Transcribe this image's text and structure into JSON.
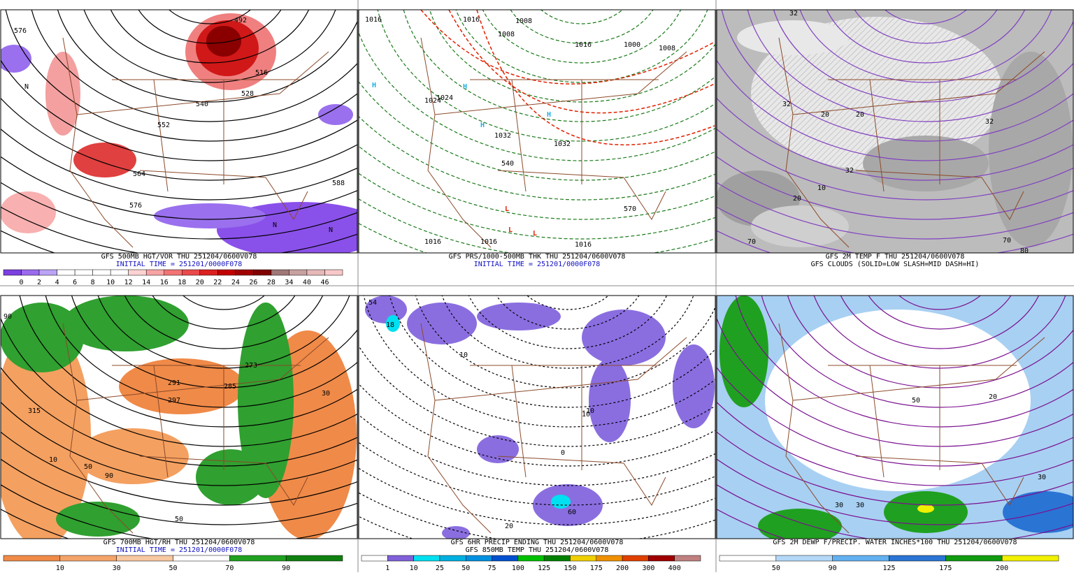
{
  "panels": [
    {
      "captions": [
        "GFS 500MB HGT/VOR THU 251204/0600V078",
        "INITIAL TIME = 251201/0000F078"
      ],
      "colorbar": {
        "colors": [
          "#7c3fe0",
          "#9a6aee",
          "#bba3f5",
          "#ffffff",
          "#ffffff",
          "#ffffff",
          "#ffffff",
          "#fcd2d2",
          "#f8a4a4",
          "#f27474",
          "#ea4a4a",
          "#dc2020",
          "#c20000",
          "#a00000",
          "#800000",
          "#a07878",
          "#c8a0a0",
          "#e6b8b8",
          "#f8c8c8"
        ],
        "labels": [
          "0",
          "2",
          "4",
          "6",
          "8",
          "10",
          "12",
          "14",
          "16",
          "18",
          "20",
          "22",
          "24",
          "26",
          "28",
          "34",
          "40",
          "46"
        ]
      },
      "map_labels": [
        "576",
        "492",
        "516",
        "528",
        "540",
        "552",
        "564",
        "576",
        "588",
        "N",
        "N",
        "N"
      ]
    },
    {
      "captions": [
        "GFS PRS/1000-500MB THK THU 251204/0600V078",
        "INITIAL TIME = 251201/0000F078"
      ],
      "map_labels": [
        "1016",
        "1016",
        "1008",
        "1008",
        "1016",
        "1000",
        "1008",
        "1024",
        "1024",
        "1032",
        "1032",
        "540",
        "570",
        "1016",
        "1016",
        "1016",
        "L",
        "L",
        "L",
        "H",
        "H",
        "H",
        "H"
      ]
    },
    {
      "captions": [
        "GFS 2M TEMP F THU 251204/0600V078",
        "GFS CLOUDS (SOLID=LOW SLASH=MID DASH=HI)"
      ],
      "map_labels": [
        "32",
        "20",
        "20",
        "32",
        "32",
        "32",
        "20",
        "10",
        "70",
        "80",
        "70"
      ]
    },
    {
      "captions": [
        "GFS 700MB HGT/RH THU 251204/0600V078",
        "INITIAL TIME = 251201/0000F078"
      ],
      "colorbar": {
        "colors": [
          "#f08a48",
          "#f4a468",
          "#f8c8a0",
          "#ffffff",
          "#20a020",
          "#108010"
        ],
        "labels": [
          "10",
          "30",
          "50",
          "70",
          "90"
        ]
      },
      "map_labels": [
        "90",
        "297",
        "291",
        "285",
        "273",
        "315",
        "10",
        "50",
        "90",
        "30",
        "50"
      ]
    },
    {
      "captions": [
        "GFS 6HR PRECIP ENDING THU 251204/0600V078",
        "GFS 850MB TEMP THU 251204/0600V078"
      ],
      "colorbar": {
        "colors": [
          "#ffffff",
          "#8060d8",
          "#00e0f0",
          "#00b0e0",
          "#0090e0",
          "#0050d0",
          "#00c000",
          "#008000",
          "#f0d000",
          "#f09000",
          "#e04000",
          "#a00000",
          "#c08080"
        ],
        "labels": [
          "1",
          "10",
          "25",
          "50",
          "75",
          "100",
          "125",
          "150",
          "175",
          "200",
          "300",
          "400"
        ]
      },
      "map_labels": [
        "54",
        "18",
        "10",
        "10",
        "60",
        "20",
        "0",
        "-10"
      ]
    },
    {
      "captions": [
        "GFS 2M DEWP F/PRECIP. WATER INCHES*100 THU 251204/0600V078"
      ],
      "colorbar": {
        "colors": [
          "#ffffff",
          "#b4d8f8",
          "#62b0f0",
          "#2a74d4",
          "#109a10",
          "#f0f000"
        ],
        "labels": [
          "50",
          "90",
          "125",
          "175",
          "200"
        ]
      },
      "map_labels": [
        "30",
        "30",
        "50",
        "20",
        "30"
      ]
    }
  ]
}
